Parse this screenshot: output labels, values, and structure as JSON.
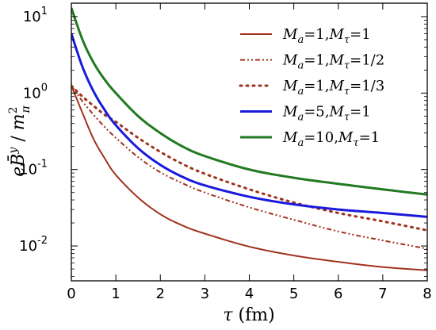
{
  "chart_data": {
    "type": "line",
    "xlabel": "τ (fm)",
    "ylabel": "eB̄ʸ / m²π",
    "xlim": [
      0,
      8
    ],
    "ylim": [
      0.0035,
      15
    ],
    "yscale": "log",
    "grid": false,
    "legend_position": "top-right",
    "x_ticks": [
      "0",
      "1",
      "2",
      "3",
      "4",
      "5",
      "6",
      "7",
      "8"
    ],
    "y_ticks": [
      {
        "value": 0.01,
        "base": "10",
        "exp": "-2"
      },
      {
        "value": 0.1,
        "base": "10",
        "exp": "-1"
      },
      {
        "value": 1,
        "base": "10",
        "exp": "0"
      },
      {
        "value": 10,
        "base": "10",
        "exp": "1"
      }
    ],
    "series": [
      {
        "name": "Ma=1,Mτ=1",
        "color": "#a0321e",
        "style": "solid",
        "x": [
          0,
          0.25,
          0.5,
          0.75,
          1,
          1.5,
          2,
          2.5,
          3,
          4,
          5,
          6,
          7,
          8
        ],
        "y": [
          1.25,
          0.55,
          0.25,
          0.14,
          0.085,
          0.043,
          0.026,
          0.0185,
          0.0145,
          0.0098,
          0.0075,
          0.0062,
          0.0053,
          0.0048
        ]
      },
      {
        "name": "Ma=1,Mτ=1/2",
        "color": "#a0321e",
        "style": "dashdotdot",
        "x": [
          0,
          0.25,
          0.5,
          0.75,
          1,
          1.5,
          2,
          2.5,
          3,
          4,
          5,
          6,
          7,
          8
        ],
        "y": [
          1.25,
          0.78,
          0.52,
          0.36,
          0.26,
          0.145,
          0.092,
          0.066,
          0.05,
          0.032,
          0.022,
          0.0155,
          0.0118,
          0.0092
        ]
      },
      {
        "name": "Ma=1,Mτ=1/3",
        "color": "#a0321e",
        "style": "dotted",
        "x": [
          0,
          0.25,
          0.5,
          0.75,
          1,
          1.5,
          2,
          2.5,
          3,
          4,
          5,
          6,
          7,
          8
        ],
        "y": [
          1.25,
          0.9,
          0.68,
          0.52,
          0.42,
          0.26,
          0.17,
          0.118,
          0.088,
          0.055,
          0.037,
          0.027,
          0.021,
          0.016
        ]
      },
      {
        "name": "Ma=5,Mτ=1",
        "color": "#1a1adb",
        "style": "solid",
        "x": [
          0,
          0.25,
          0.5,
          0.75,
          1,
          1.5,
          2,
          2.5,
          3,
          4,
          5,
          6,
          7,
          8
        ],
        "y": [
          6.0,
          2.2,
          1.05,
          0.6,
          0.38,
          0.19,
          0.115,
          0.08,
          0.062,
          0.044,
          0.035,
          0.03,
          0.027,
          0.024
        ]
      },
      {
        "name": "Ma=10,Mτ=1",
        "color": "#217a21",
        "style": "solid",
        "x": [
          0,
          0.25,
          0.5,
          0.75,
          1,
          1.5,
          2,
          2.5,
          3,
          4,
          5,
          6,
          7,
          8
        ],
        "y": [
          13.0,
          5.0,
          2.5,
          1.5,
          1.0,
          0.5,
          0.3,
          0.2,
          0.15,
          0.1,
          0.078,
          0.065,
          0.055,
          0.047
        ]
      }
    ],
    "legend": [
      {
        "label_main": "M",
        "label_sub_a": "a",
        "eq_a": "=1,",
        "label_m2": "M",
        "label_sub_t": "τ",
        "eq_t": "=1"
      },
      {
        "label_main": "M",
        "label_sub_a": "a",
        "eq_a": "=1,",
        "label_m2": "M",
        "label_sub_t": "τ",
        "eq_t": "=1/2"
      },
      {
        "label_main": "M",
        "label_sub_a": "a",
        "eq_a": "=1,",
        "label_m2": "M",
        "label_sub_t": "τ",
        "eq_t": "=1/3"
      },
      {
        "label_main": "M",
        "label_sub_a": "a",
        "eq_a": "=5,",
        "label_m2": "M",
        "label_sub_t": "τ",
        "eq_t": "=1"
      },
      {
        "label_main": "M",
        "label_sub_a": "a",
        "eq_a": "=10,",
        "label_m2": "M",
        "label_sub_t": "τ",
        "eq_t": "=1"
      }
    ]
  }
}
